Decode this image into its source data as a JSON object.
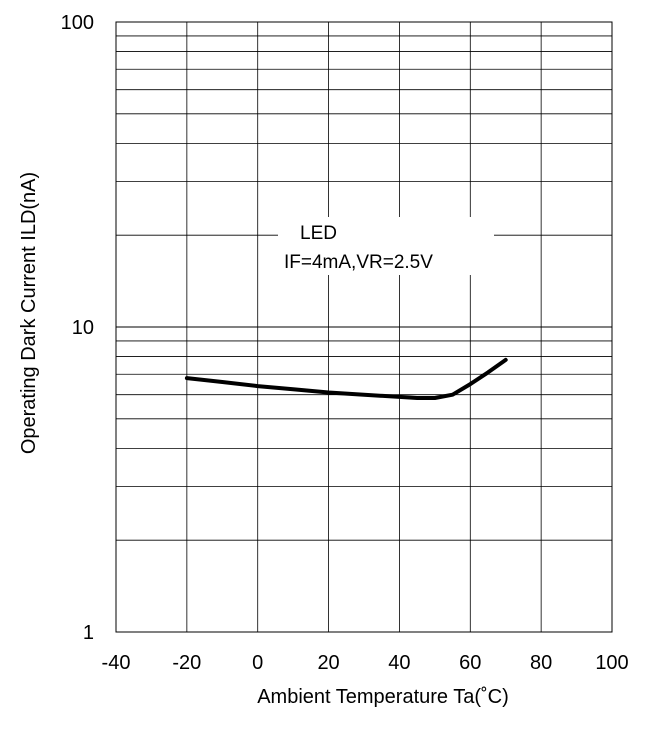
{
  "chart_data": {
    "type": "line",
    "title": "",
    "xlabel": "Ambient Temperature Ta(˚C)",
    "ylabel": "Operating Dark Current ILD(nA)",
    "xlim": [
      -40,
      100
    ],
    "ylim": [
      1,
      100
    ],
    "yscale": "log",
    "grid": true,
    "x_ticks": [
      "-40",
      "-20",
      "0",
      "20",
      "40",
      "60",
      "80",
      "100"
    ],
    "x_tick_values": [
      -40,
      -20,
      0,
      20,
      40,
      60,
      80,
      100
    ],
    "y_ticks": [
      "1",
      "10",
      "100"
    ],
    "y_tick_values": [
      1,
      10,
      100
    ],
    "annotation": [
      "LED",
      "IF=4mA,VR=2.5V"
    ],
    "series": [
      {
        "x": [
          -20,
          -10,
          0,
          10,
          20,
          30,
          40,
          45,
          50,
          55,
          60,
          65,
          70
        ],
        "y": [
          6.8,
          6.6,
          6.4,
          6.25,
          6.1,
          6.0,
          5.9,
          5.85,
          5.85,
          6.0,
          6.5,
          7.1,
          7.8
        ]
      }
    ],
    "line_color": "#000000"
  }
}
